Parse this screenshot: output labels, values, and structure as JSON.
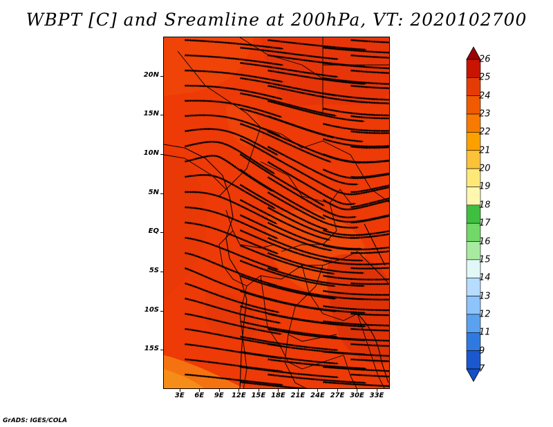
{
  "title": "WBPT [C] and Sreamline at 200hPa, VT: 2020102700",
  "footer": "GrADS: IGES/COLA",
  "map": {
    "lat_labels": [
      "20N",
      "15N",
      "10N",
      "5N",
      "EQ",
      "5S",
      "10S",
      "15S"
    ],
    "lon_labels": [
      "3E",
      "6E",
      "9E",
      "12E",
      "15E",
      "18E",
      "21E",
      "24E",
      "27E",
      "30E",
      "33E"
    ],
    "lat_values": [
      20,
      15,
      10,
      5,
      0,
      -5,
      -10,
      -15
    ],
    "lon_values": [
      3,
      6,
      9,
      12,
      15,
      18,
      21,
      24,
      27,
      30,
      33
    ],
    "lat_range": [
      -20,
      25
    ],
    "lon_range": [
      0.5,
      35
    ],
    "dominant_fill": "#ee3a06",
    "fields": "wet-bulb potential temperature shaded, 200hPa streamlines"
  },
  "colorbar": {
    "labels": [
      "26",
      "25",
      "24",
      "23",
      "22",
      "21",
      "20",
      "19",
      "18",
      "17",
      "16",
      "15",
      "14",
      "13",
      "12",
      "11",
      "9",
      "7"
    ],
    "colors": [
      "#a00000",
      "#c81400",
      "#e53c06",
      "#f15a00",
      "#f87a00",
      "#fca000",
      "#fcc238",
      "#fde878",
      "#fff7b0",
      "#3fbf3f",
      "#72d868",
      "#a8eba0",
      "#e2f7f7",
      "#b6dcff",
      "#8cc4fb",
      "#5aa2f0",
      "#2f7ae0",
      "#1a58d0",
      "#1450c8"
    ]
  }
}
